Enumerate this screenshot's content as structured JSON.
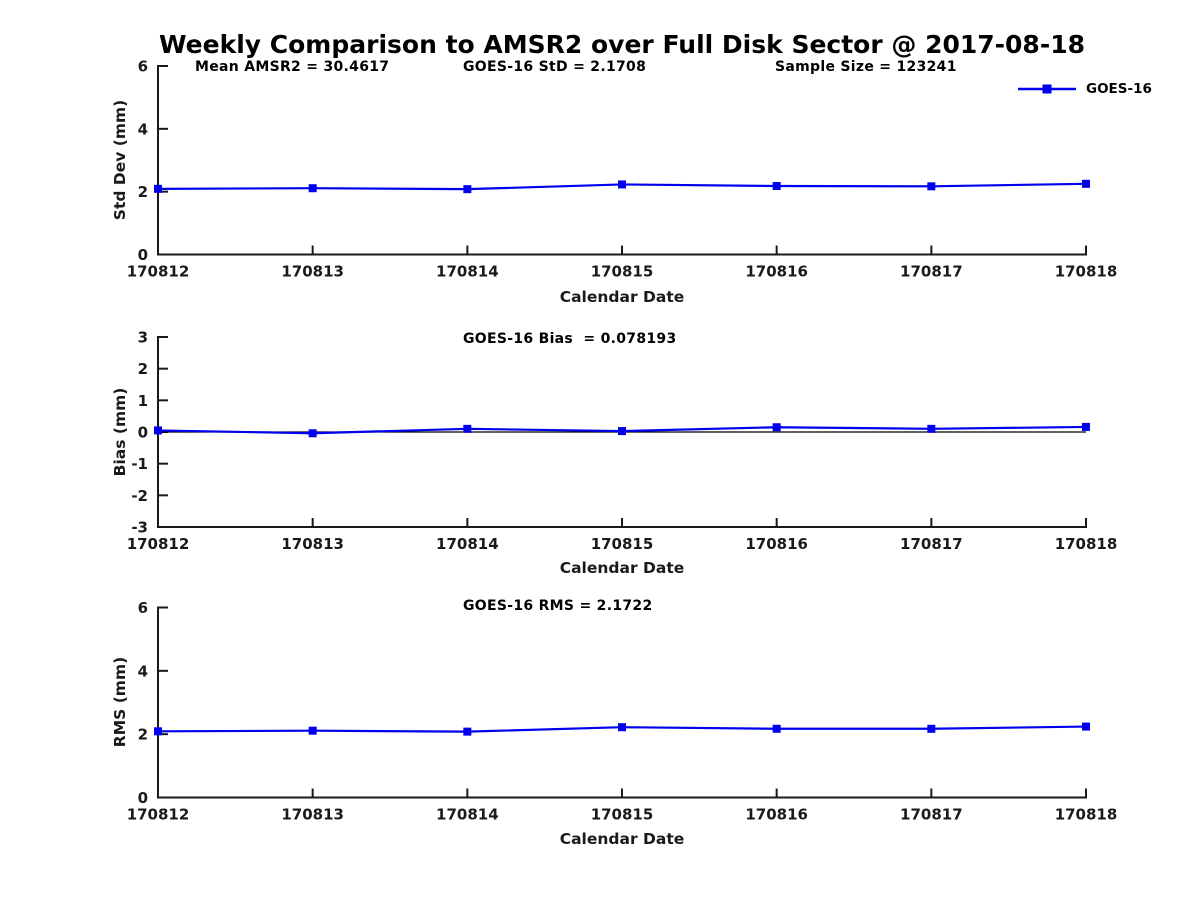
{
  "figure": {
    "title": "Weekly Comparison to AMSR2 over Full Disk Sector @ 2017-08-18"
  },
  "legend": {
    "label": "GOES-16",
    "position": "top-right"
  },
  "colors": {
    "line": "#0000ee",
    "marker": "#0000ee",
    "axis": "#1a1a1a",
    "tick_text": "#1a1a1a",
    "zero_line": "#000000",
    "background": "#ffffff"
  },
  "chart_data": [
    {
      "type": "line",
      "panel": "std-dev",
      "annotations": [
        "Mean AMSR2 = 30.4617",
        "GOES-16 StD = 2.1708",
        "Sample Size = 123241"
      ],
      "categories": [
        "170812",
        "170813",
        "170814",
        "170815",
        "170816",
        "170817",
        "170818"
      ],
      "series": [
        {
          "name": "GOES-16",
          "values": [
            2.09,
            2.11,
            2.08,
            2.23,
            2.18,
            2.17,
            2.25
          ]
        }
      ],
      "xlabel": "Calendar Date",
      "ylabel": "Std Dev (mm)",
      "ylim": [
        0,
        6
      ],
      "yticks": [
        0,
        2,
        4,
        6
      ],
      "zero_line": false,
      "grid": false,
      "legend_entries": [
        "GOES-16"
      ]
    },
    {
      "type": "line",
      "panel": "bias",
      "annotations": [
        "GOES-16 Bias  = 0.078193"
      ],
      "categories": [
        "170812",
        "170813",
        "170814",
        "170815",
        "170816",
        "170817",
        "170818"
      ],
      "series": [
        {
          "name": "GOES-16",
          "values": [
            0.05,
            -0.04,
            0.1,
            0.03,
            0.15,
            0.1,
            0.16
          ]
        }
      ],
      "xlabel": "Calendar Date",
      "ylabel": "Bias (mm)",
      "ylim": [
        -3,
        3
      ],
      "yticks": [
        -3,
        -2,
        -1,
        0,
        1,
        2,
        3
      ],
      "zero_line": true,
      "grid": false
    },
    {
      "type": "line",
      "panel": "rms",
      "annotations": [
        "GOES-16 RMS = 2.1722"
      ],
      "categories": [
        "170812",
        "170813",
        "170814",
        "170815",
        "170816",
        "170817",
        "170818"
      ],
      "series": [
        {
          "name": "GOES-16",
          "values": [
            2.09,
            2.11,
            2.08,
            2.22,
            2.17,
            2.17,
            2.24
          ]
        }
      ],
      "xlabel": "Calendar Date",
      "ylabel": "RMS (mm)",
      "ylim": [
        0,
        6
      ],
      "yticks": [
        0,
        2,
        4,
        6
      ],
      "zero_line": false,
      "grid": false
    }
  ]
}
